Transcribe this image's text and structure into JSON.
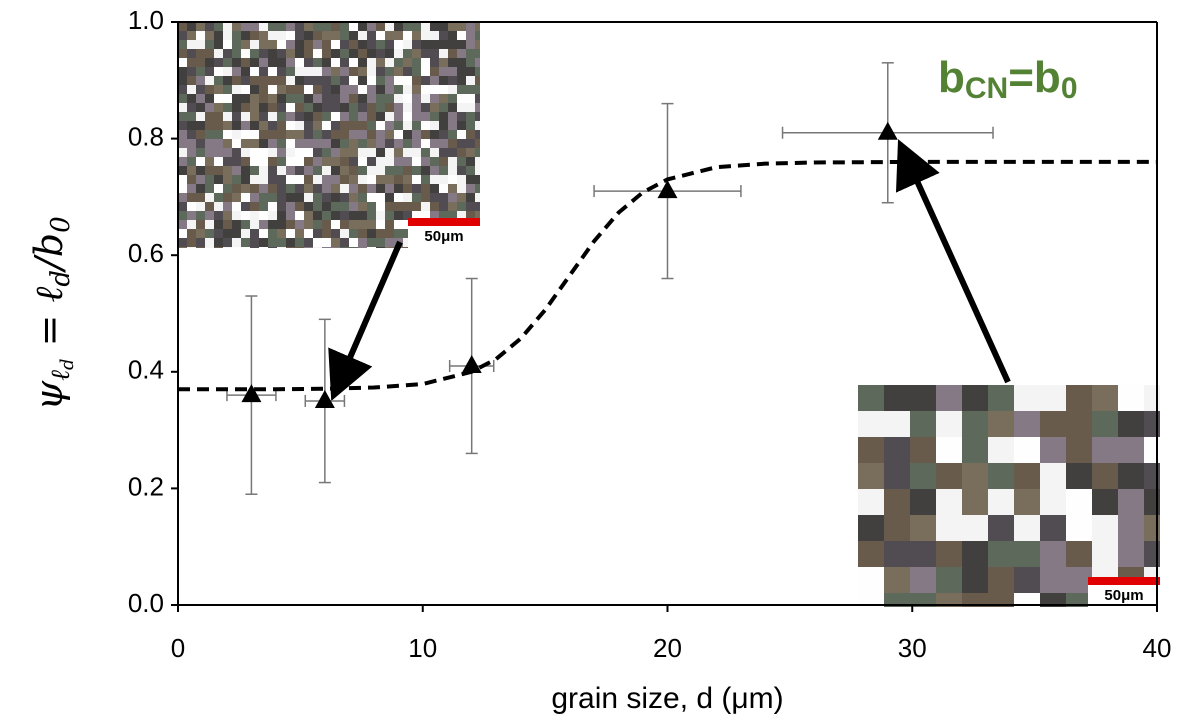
{
  "chart_data": {
    "type": "scatter",
    "xlabel": "grain size, d (μm)",
    "ylabel_parts": [
      "ψ",
      "ℓ",
      "d",
      " = ℓ",
      "d",
      "/b",
      "0"
    ],
    "annotation_parts": [
      "b",
      "CN",
      "=b",
      "0"
    ],
    "annotation_color": "#548235",
    "inset_labels": [
      "50μm",
      "50μm"
    ],
    "xlim": [
      0,
      40
    ],
    "xticks": [
      0,
      10,
      20,
      30,
      40
    ],
    "ylim": [
      0,
      1.0
    ],
    "yticks": [
      {
        "value": 0,
        "label": "0.0"
      },
      0.2,
      0.4,
      0.6,
      0.8,
      {
        "value": 1.0,
        "label": "1.0"
      }
    ],
    "series": [
      {
        "color": "#000000",
        "marker": "triangle",
        "x": [
          3,
          6,
          12,
          20,
          29
        ],
        "values": [
          0.36,
          0.35,
          0.41,
          0.71,
          0.81
        ],
        "xerr": [
          1,
          0.8,
          0.9,
          3,
          4.3
        ],
        "yerr": [
          0.17,
          0.14,
          0.15,
          0.15,
          0.12
        ],
        "errorbar_color": "#777777"
      },
      {
        "color": "#000000",
        "line_style": "dashed",
        "x": [
          0,
          2,
          4,
          6,
          8,
          10,
          12,
          13,
          14,
          15,
          16,
          17,
          18,
          19,
          20,
          22,
          24,
          26,
          30,
          35,
          40
        ],
        "values": [
          0.37,
          0.37,
          0.37,
          0.371,
          0.373,
          0.379,
          0.4,
          0.422,
          0.457,
          0.506,
          0.565,
          0.624,
          0.673,
          0.708,
          0.73,
          0.751,
          0.757,
          0.759,
          0.76,
          0.76,
          0.76
        ]
      }
    ]
  }
}
